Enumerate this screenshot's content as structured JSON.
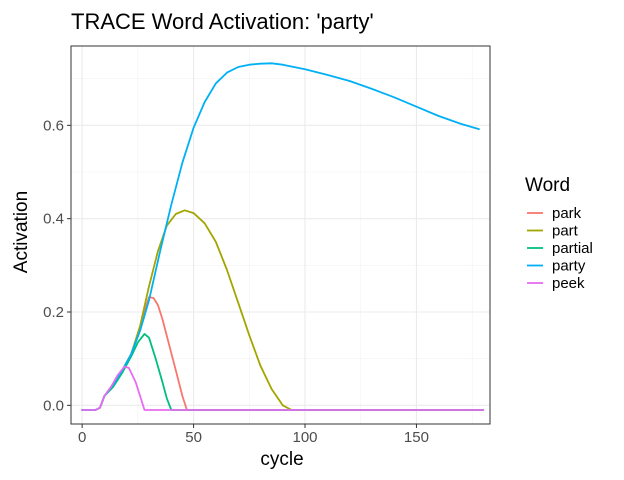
{
  "chart_data": {
    "type": "line",
    "title": "TRACE Word Activation: 'party'",
    "xlabel": "cycle",
    "ylabel": "Activation",
    "xlim": [
      -5,
      183
    ],
    "ylim": [
      -0.04,
      0.77
    ],
    "xticks": [
      0,
      50,
      100,
      150
    ],
    "yticks": [
      0.0,
      0.2,
      0.4,
      0.6
    ],
    "ytick_labels": [
      "0.0",
      "0.2",
      "0.4",
      "0.6"
    ],
    "grid": true,
    "legend": {
      "title": "Word",
      "position": "right"
    },
    "series": [
      {
        "name": "park",
        "color": "#F8766D",
        "points": [
          [
            0,
            -0.01
          ],
          [
            6,
            -0.01
          ],
          [
            8,
            -0.005
          ],
          [
            10,
            0.02
          ],
          [
            14,
            0.045
          ],
          [
            18,
            0.075
          ],
          [
            22,
            0.11
          ],
          [
            26,
            0.165
          ],
          [
            28,
            0.2
          ],
          [
            30,
            0.232
          ],
          [
            32,
            0.23
          ],
          [
            34,
            0.215
          ],
          [
            36,
            0.185
          ],
          [
            39,
            0.13
          ],
          [
            42,
            0.075
          ],
          [
            45,
            0.02
          ],
          [
            47,
            -0.01
          ],
          [
            180,
            -0.01
          ]
        ]
      },
      {
        "name": "part",
        "color": "#A3A500",
        "points": [
          [
            0,
            -0.01
          ],
          [
            6,
            -0.01
          ],
          [
            8,
            -0.005
          ],
          [
            10,
            0.02
          ],
          [
            14,
            0.045
          ],
          [
            18,
            0.075
          ],
          [
            22,
            0.11
          ],
          [
            26,
            0.17
          ],
          [
            30,
            0.255
          ],
          [
            34,
            0.33
          ],
          [
            38,
            0.385
          ],
          [
            42,
            0.41
          ],
          [
            46,
            0.418
          ],
          [
            50,
            0.412
          ],
          [
            55,
            0.39
          ],
          [
            60,
            0.35
          ],
          [
            65,
            0.29
          ],
          [
            70,
            0.22
          ],
          [
            75,
            0.15
          ],
          [
            80,
            0.085
          ],
          [
            85,
            0.035
          ],
          [
            90,
            0.0
          ],
          [
            94,
            -0.01
          ],
          [
            180,
            -0.01
          ]
        ]
      },
      {
        "name": "partial",
        "color": "#00BF7D",
        "points": [
          [
            0,
            -0.01
          ],
          [
            6,
            -0.01
          ],
          [
            8,
            -0.005
          ],
          [
            10,
            0.02
          ],
          [
            14,
            0.04
          ],
          [
            18,
            0.07
          ],
          [
            22,
            0.105
          ],
          [
            25,
            0.135
          ],
          [
            28,
            0.153
          ],
          [
            30,
            0.145
          ],
          [
            33,
            0.1
          ],
          [
            36,
            0.05
          ],
          [
            38,
            0.015
          ],
          [
            40,
            -0.01
          ],
          [
            180,
            -0.01
          ]
        ]
      },
      {
        "name": "party",
        "color": "#00B0F6",
        "points": [
          [
            0,
            -0.01
          ],
          [
            6,
            -0.01
          ],
          [
            8,
            -0.005
          ],
          [
            10,
            0.02
          ],
          [
            14,
            0.045
          ],
          [
            18,
            0.075
          ],
          [
            22,
            0.11
          ],
          [
            26,
            0.16
          ],
          [
            30,
            0.225
          ],
          [
            35,
            0.33
          ],
          [
            40,
            0.43
          ],
          [
            45,
            0.52
          ],
          [
            50,
            0.595
          ],
          [
            55,
            0.65
          ],
          [
            60,
            0.69
          ],
          [
            65,
            0.713
          ],
          [
            70,
            0.725
          ],
          [
            75,
            0.73
          ],
          [
            80,
            0.732
          ],
          [
            85,
            0.733
          ],
          [
            90,
            0.73
          ],
          [
            100,
            0.72
          ],
          [
            110,
            0.708
          ],
          [
            120,
            0.695
          ],
          [
            130,
            0.678
          ],
          [
            140,
            0.66
          ],
          [
            150,
            0.64
          ],
          [
            160,
            0.62
          ],
          [
            170,
            0.603
          ],
          [
            178,
            0.592
          ]
        ]
      },
      {
        "name": "peek",
        "color": "#E76BF3",
        "points": [
          [
            0,
            -0.01
          ],
          [
            6,
            -0.01
          ],
          [
            8,
            -0.005
          ],
          [
            10,
            0.02
          ],
          [
            13,
            0.04
          ],
          [
            16,
            0.065
          ],
          [
            19,
            0.083
          ],
          [
            21,
            0.08
          ],
          [
            24,
            0.05
          ],
          [
            26,
            0.02
          ],
          [
            28,
            -0.01
          ],
          [
            180,
            -0.01
          ]
        ]
      }
    ]
  }
}
